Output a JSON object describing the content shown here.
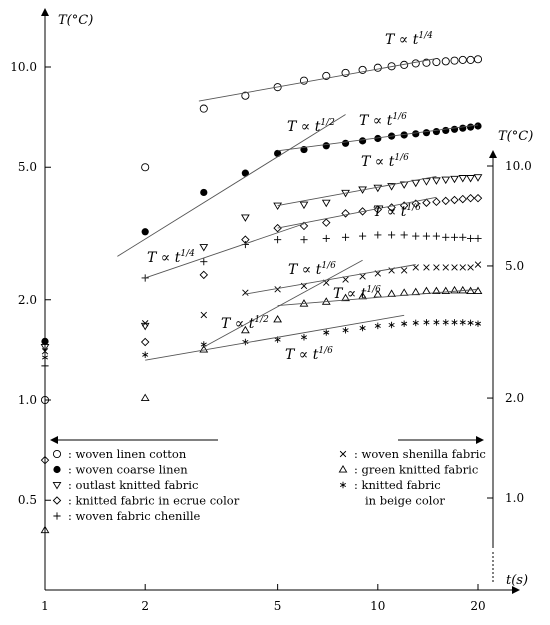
{
  "chart_data": {
    "type": "scatter",
    "scale": "log-log",
    "x_axis": {
      "label": "t(s)",
      "ticks": [
        1,
        2,
        5,
        10,
        20
      ],
      "tick_labels": [
        "1",
        "2",
        "5",
        "10",
        "20"
      ],
      "range": [
        1,
        22
      ]
    },
    "left_axis": {
      "label": "T(°C)",
      "ticks": [
        0.5,
        1.0,
        2.0,
        5.0,
        10.0
      ],
      "tick_labels": [
        "0.5",
        "1.0",
        "2.0",
        "5.0",
        "10.0"
      ],
      "range": [
        0.32,
        15
      ]
    },
    "right_axis": {
      "label": "T(°C)",
      "ticks": [
        1.0,
        2.0,
        5.0,
        10.0
      ],
      "tick_labels": [
        "1.0",
        "2.0",
        "5.0",
        "10.0"
      ],
      "range": [
        0.55,
        16
      ]
    },
    "series": [
      {
        "name": "woven linen cotton",
        "marker": "○",
        "axis": "left",
        "x": [
          1,
          2,
          3,
          4,
          5,
          6,
          7,
          8,
          9,
          10,
          11,
          12,
          13,
          14,
          15,
          16,
          17,
          18,
          19,
          20
        ],
        "y": [
          1.0,
          5.0,
          7.5,
          8.2,
          8.7,
          9.1,
          9.4,
          9.6,
          9.8,
          9.95,
          10.05,
          10.15,
          10.25,
          10.3,
          10.35,
          10.4,
          10.45,
          10.5,
          10.5,
          10.55
        ]
      },
      {
        "name": "woven coarse linen",
        "marker": "●",
        "axis": "left",
        "x": [
          1,
          2,
          3,
          4,
          5,
          6,
          7,
          8,
          9,
          10,
          11,
          12,
          13,
          14,
          15,
          16,
          17,
          18,
          19,
          20
        ],
        "y": [
          1.5,
          3.2,
          4.2,
          4.8,
          5.5,
          5.65,
          5.8,
          5.9,
          6.0,
          6.1,
          6.2,
          6.25,
          6.3,
          6.35,
          6.4,
          6.45,
          6.5,
          6.55,
          6.6,
          6.65
        ]
      },
      {
        "name": "outlast knitted fabric",
        "marker": "▽",
        "axis": "right",
        "x": [
          1,
          2,
          3,
          4,
          5,
          6,
          7,
          8,
          9,
          10,
          11,
          12,
          13,
          14,
          15,
          16,
          17,
          18,
          19,
          20
        ],
        "y": [
          2.85,
          3.3,
          5.7,
          7.0,
          7.6,
          7.65,
          7.75,
          8.3,
          8.5,
          8.6,
          8.7,
          8.8,
          8.9,
          9.0,
          9.05,
          9.1,
          9.15,
          9.2,
          9.2,
          9.25
        ]
      },
      {
        "name": "knitted fabric in ecrue color",
        "marker": "◇",
        "axis": "right",
        "x": [
          1,
          2,
          3,
          4,
          5,
          6,
          7,
          8,
          9,
          10,
          11,
          12,
          13,
          14,
          15,
          16,
          17,
          18,
          19,
          20
        ],
        "y": [
          1.3,
          2.95,
          4.7,
          6.0,
          6.5,
          6.6,
          6.75,
          7.2,
          7.3,
          7.4,
          7.5,
          7.6,
          7.7,
          7.75,
          7.8,
          7.85,
          7.9,
          7.95,
          8.0,
          8.0
        ]
      },
      {
        "name": "woven fabric chenille",
        "marker": "+",
        "axis": "right",
        "x": [
          1,
          2,
          3,
          4,
          5,
          6,
          7,
          8,
          9,
          10,
          11,
          12,
          13,
          14,
          15,
          16,
          17,
          18,
          19,
          20
        ],
        "y": [
          2.5,
          4.6,
          5.15,
          5.8,
          6.0,
          6.0,
          6.05,
          6.1,
          6.15,
          6.2,
          6.2,
          6.2,
          6.15,
          6.15,
          6.15,
          6.1,
          6.1,
          6.1,
          6.05,
          6.05
        ]
      },
      {
        "name": "woven shenilla fabric",
        "marker": "×",
        "axis": "left",
        "x": [
          1,
          2,
          3,
          4,
          5,
          6,
          7,
          8,
          9,
          10,
          11,
          12,
          13,
          14,
          15,
          16,
          17,
          18,
          19,
          20
        ],
        "y": [
          1.4,
          1.7,
          1.8,
          2.1,
          2.15,
          2.2,
          2.25,
          2.3,
          2.35,
          2.4,
          2.45,
          2.45,
          2.5,
          2.5,
          2.5,
          2.5,
          2.5,
          2.5,
          2.5,
          2.55
        ]
      },
      {
        "name": "green knitted fabric",
        "marker": "△",
        "axis": "right",
        "x": [
          1,
          2,
          3,
          4,
          5,
          6,
          7,
          8,
          9,
          10,
          11,
          12,
          13,
          14,
          15,
          16,
          17,
          18,
          19,
          20
        ],
        "y": [
          0.8,
          2.0,
          2.8,
          3.2,
          3.45,
          3.85,
          3.9,
          4.0,
          4.05,
          4.1,
          4.12,
          4.15,
          4.17,
          4.2,
          4.2,
          4.2,
          4.22,
          4.22,
          4.2,
          4.2
        ]
      },
      {
        "name": "knitted fabric in beige color",
        "marker": "*",
        "axis": "right",
        "x": [
          1,
          2,
          3,
          4,
          5,
          6,
          7,
          8,
          9,
          10,
          11,
          12,
          13,
          14,
          15,
          16,
          17,
          18,
          19,
          20
        ],
        "y": [
          2.65,
          2.7,
          2.9,
          2.95,
          3.0,
          3.05,
          3.15,
          3.2,
          3.25,
          3.3,
          3.32,
          3.35,
          3.37,
          3.38,
          3.38,
          3.38,
          3.38,
          3.38,
          3.37,
          3.35
        ]
      }
    ],
    "annotations": [
      {
        "text": "T ∝ t",
        "exp": "1/4",
        "x": 3.5,
        "y": 8.0
      },
      {
        "text": "T ∝ t",
        "exp": "1/2",
        "x": 0.0,
        "y": 0.0
      },
      {
        "text": "T ∝ t",
        "exp": "1/6",
        "x": 0.0,
        "y": 0.0
      },
      {
        "text": "T ∝ t",
        "exp": "1/6",
        "x": 0.0,
        "y": 0.0
      },
      {
        "text": "T ∝ t",
        "exp": "1/6",
        "x": 0.0,
        "y": 0.0
      },
      {
        "text": "T ∝ t",
        "exp": "1/4",
        "x": 0.0,
        "y": 0.0
      },
      {
        "text": "T ∝ t",
        "exp": "1/6",
        "x": 0.0,
        "y": 0.0
      },
      {
        "text": "T ∝ t",
        "exp": "1/6",
        "x": 0.0,
        "y": 0.0
      },
      {
        "text": "T ∝ t",
        "exp": "1/2",
        "x": 0.0,
        "y": 0.0
      },
      {
        "text": "T ∝ t",
        "exp": "1/6",
        "x": 0.0,
        "y": 0.0
      }
    ],
    "legend": {
      "placement": "bottom",
      "left_column": [
        {
          "marker": "○",
          "label": "woven linen cotton"
        },
        {
          "marker": "●",
          "label": "woven coarse linen"
        },
        {
          "marker": "▽",
          "label": "outlast knitted fabric"
        },
        {
          "marker": "◇",
          "label": "knitted fabric in ecrue color"
        },
        {
          "marker": "+",
          "label": "woven fabric chenille"
        }
      ],
      "right_column": [
        {
          "marker": "×",
          "label": "woven shenilla fabric"
        },
        {
          "marker": "△",
          "label": "green knitted fabric"
        },
        {
          "marker": "*",
          "label": "knitted fabric",
          "label2": "in beige color"
        }
      ]
    },
    "grid": false
  }
}
